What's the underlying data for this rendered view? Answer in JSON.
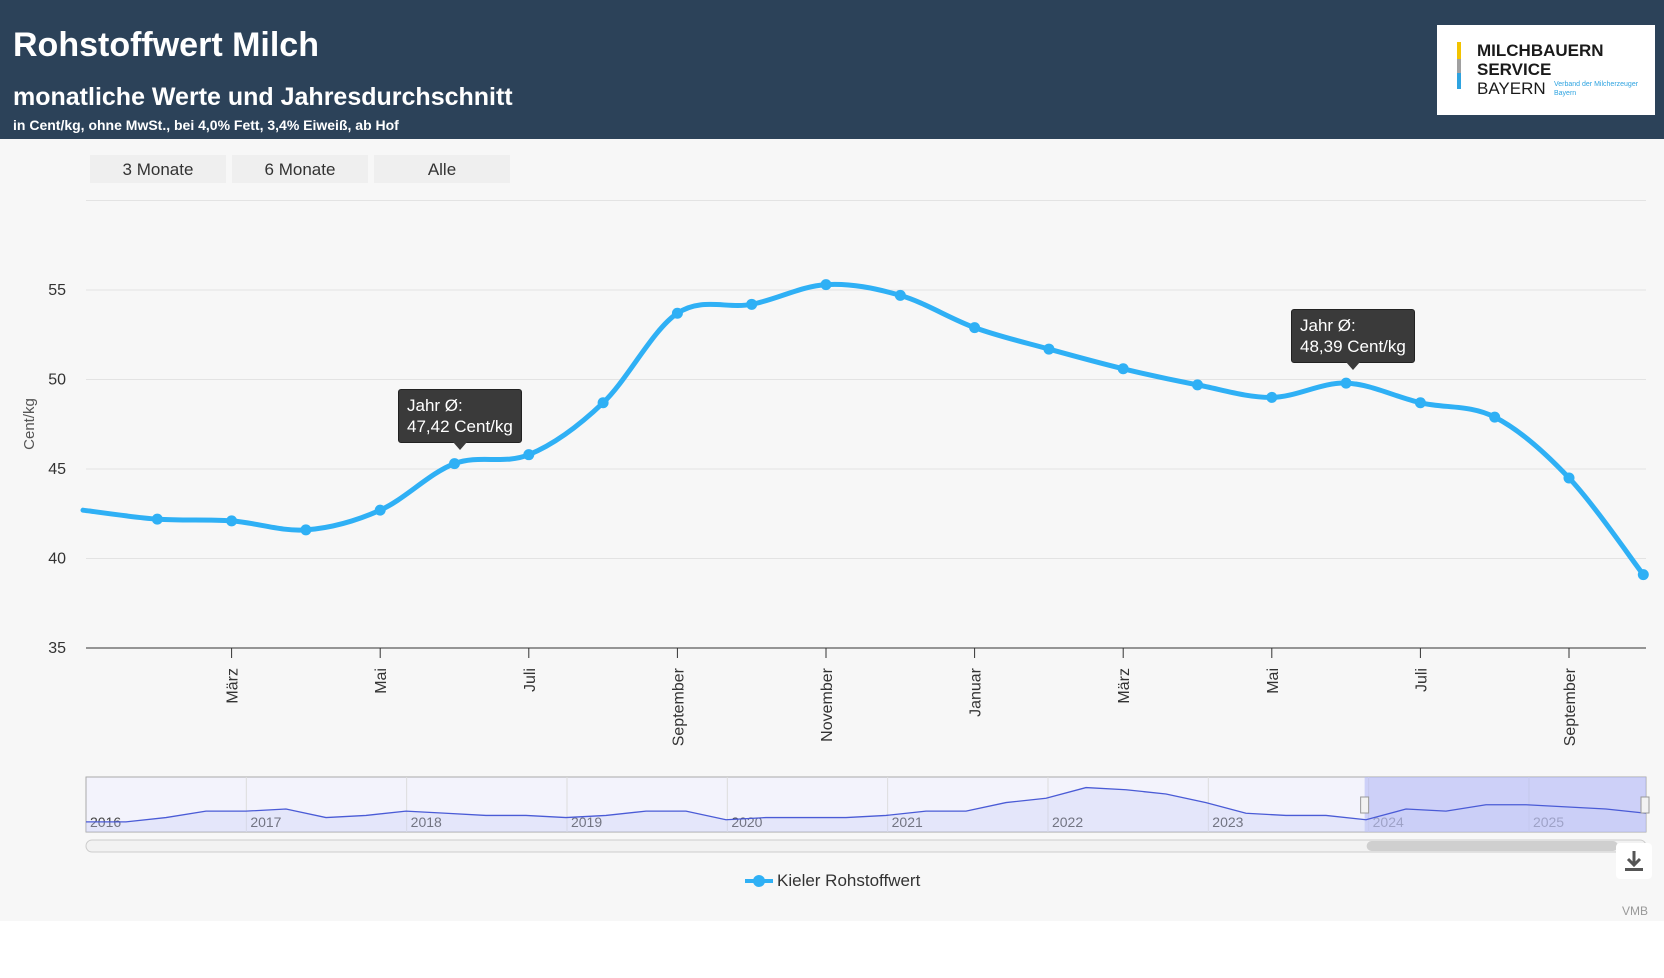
{
  "header": {
    "title": "Rohstoffwert Milch",
    "subtitle": "monatliche Werte und Jahresdurchschnitt",
    "note": "in Cent/kg, ohne MwSt., bei 4,0% Fett, 3,4% Eiweiß, ab Hof"
  },
  "logo": {
    "line1": "MILCHBAUERN",
    "line2": "SERVICE",
    "line3": "BAYERN",
    "tagline": "Verband der Milcherzeuger Bayern",
    "colors": [
      "#f2c300",
      "#2ea3e0"
    ]
  },
  "range_buttons": [
    "3 Monate",
    "6 Monate",
    "Alle"
  ],
  "tooltips": [
    {
      "line1": "Jahr Ø:",
      "line2": "47,42 Cent/kg"
    },
    {
      "line1": "Jahr Ø:",
      "line2": "48,39 Cent/kg"
    }
  ],
  "navigator": {
    "years": [
      "2016",
      "2017",
      "2018",
      "2019",
      "2020",
      "2021",
      "2022",
      "2023",
      "2024",
      "2025"
    ]
  },
  "legend": {
    "label": "Kieler Rohstoffwert",
    "icon": "line-with-marker"
  },
  "credit": "VMB",
  "download_icon": "download-icon",
  "colors": {
    "series": "#2fb0f5",
    "header": "#2c4259",
    "navigator_selection": "#c8ccf5"
  },
  "chart_data": {
    "type": "line",
    "xlabel": "",
    "ylabel": "Cent/kg",
    "ylim": [
      35,
      60
    ],
    "yticks": [
      35,
      40,
      45,
      50,
      55
    ],
    "xtick_labels": [
      "März",
      "Mai",
      "Juli",
      "September",
      "November",
      "Januar",
      "März",
      "Mai",
      "Juli",
      "September"
    ],
    "grid": "horizontal",
    "legend_position": "bottom-center",
    "series": [
      {
        "name": "Kieler Rohstoffwert",
        "x": [
          "2024-01",
          "2024-02",
          "2024-03",
          "2024-04",
          "2024-05",
          "2024-06",
          "2024-07",
          "2024-08",
          "2024-09",
          "2024-10",
          "2024-11",
          "2024-12",
          "2025-01",
          "2025-02",
          "2025-03",
          "2025-04",
          "2025-05",
          "2025-06",
          "2025-07",
          "2025-08",
          "2025-09",
          "2025-10"
        ],
        "values": [
          42.7,
          42.2,
          42.1,
          41.6,
          42.7,
          45.3,
          45.8,
          48.7,
          53.7,
          54.2,
          55.3,
          54.7,
          52.9,
          51.7,
          50.6,
          49.7,
          49.0,
          49.8,
          48.7,
          47.9,
          44.5,
          39.1
        ]
      }
    ]
  }
}
